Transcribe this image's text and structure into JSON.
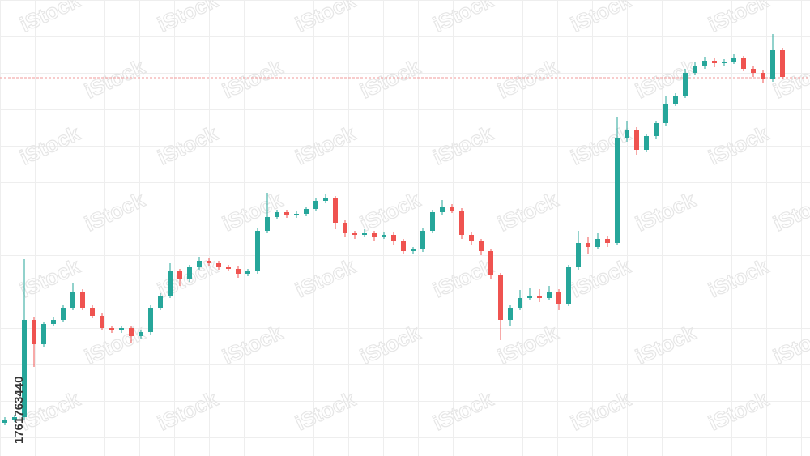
{
  "chart_data": {
    "type": "candlestick",
    "watermark": "iStock",
    "image_id": "1761763440",
    "ylim": [
      0,
      563
    ],
    "up_color": "#26a69a",
    "down_color": "#ef5350",
    "reference_line": {
      "value": 467,
      "color": "#f19a9a"
    },
    "grid": true,
    "open": [
      41,
      45,
      48,
      168,
      138,
      163,
      168,
      183,
      203,
      183,
      173,
      158,
      155,
      158,
      148,
      153,
      183,
      198,
      228,
      218,
      233,
      241,
      238,
      233,
      231,
      225,
      228,
      278,
      295,
      301,
      297,
      299,
      305,
      315,
      318,
      288,
      275,
      273,
      275,
      271,
      273,
      265,
      253,
      255,
      278,
      301,
      308,
      303,
      273,
      265,
      253,
      223,
      168,
      183,
      195,
      198,
      195,
      203,
      188,
      233,
      263,
      258,
      268,
      263,
      393,
      403,
      378,
      395,
      411,
      435,
      445,
      473,
      481,
      488,
      485,
      487,
      491,
      478,
      473,
      465,
      501
    ],
    "high": [
      48,
      51,
      243,
      171,
      166,
      171,
      186,
      213,
      206,
      186,
      176,
      161,
      161,
      161,
      156,
      186,
      201,
      238,
      231,
      236,
      246,
      244,
      241,
      236,
      234,
      231,
      281,
      325,
      304,
      304,
      302,
      308,
      318,
      323,
      321,
      291,
      278,
      280,
      278,
      276,
      276,
      268,
      258,
      281,
      304,
      316,
      311,
      306,
      276,
      268,
      256,
      226,
      186,
      205,
      208,
      206,
      210,
      206,
      236,
      278,
      270,
      275,
      272,
      418,
      413,
      406,
      398,
      414,
      445,
      448,
      478,
      486,
      493,
      491,
      490,
      496,
      494,
      481,
      476,
      521,
      504
    ],
    "low": [
      38,
      42,
      45,
      110,
      135,
      160,
      165,
      180,
      180,
      170,
      155,
      152,
      152,
      140,
      145,
      150,
      180,
      195,
      210,
      215,
      230,
      235,
      230,
      228,
      220,
      222,
      225,
      275,
      292,
      294,
      294,
      296,
      302,
      312,
      280,
      270,
      268,
      270,
      266,
      268,
      260,
      250,
      250,
      252,
      275,
      298,
      300,
      268,
      260,
      248,
      218,
      143,
      160,
      180,
      192,
      190,
      192,
      180,
      185,
      230,
      250,
      255,
      258,
      260,
      388,
      372,
      375,
      392,
      408,
      432,
      442,
      470,
      478,
      480,
      482,
      484,
      475,
      468,
      460,
      462,
      465
    ],
    "close": [
      45,
      48,
      168,
      138,
      163,
      168,
      183,
      203,
      183,
      173,
      158,
      155,
      158,
      148,
      153,
      183,
      198,
      228,
      218,
      233,
      241,
      238,
      233,
      231,
      225,
      228,
      278,
      295,
      301,
      297,
      299,
      305,
      315,
      318,
      288,
      275,
      273,
      275,
      271,
      273,
      265,
      253,
      255,
      278,
      301,
      308,
      303,
      273,
      265,
      253,
      223,
      168,
      183,
      195,
      198,
      195,
      203,
      188,
      233,
      263,
      258,
      268,
      263,
      393,
      403,
      378,
      395,
      411,
      435,
      445,
      473,
      481,
      488,
      485,
      487,
      491,
      478,
      473,
      465,
      501,
      468
    ]
  }
}
